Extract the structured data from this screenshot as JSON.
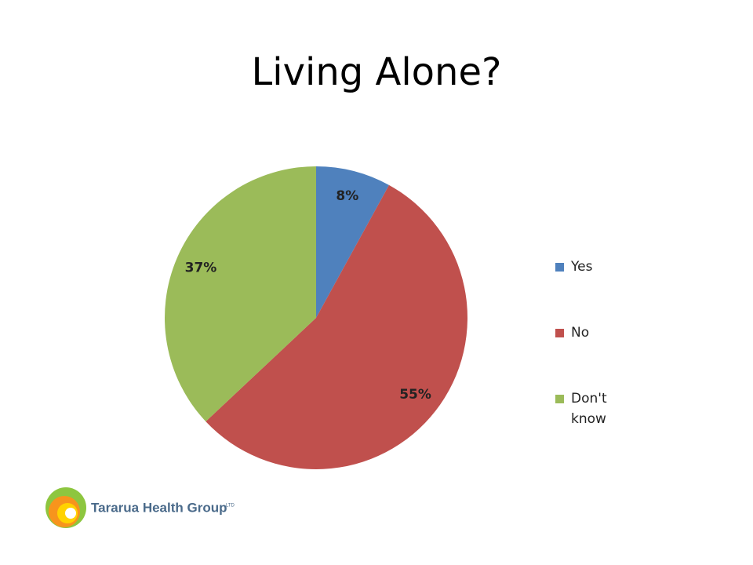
{
  "chart_data": {
    "type": "pie",
    "title": "Living Alone?",
    "categories": [
      "Yes",
      "No",
      "Don't know"
    ],
    "values": [
      8,
      55,
      37
    ],
    "value_labels": [
      "8%",
      "55%",
      "37%"
    ],
    "colors": [
      "#4f81bd",
      "#c0504d",
      "#9bbb59"
    ],
    "legend": "right"
  },
  "logo": {
    "name": "Tararua Health Group",
    "suffix": "LTD"
  }
}
